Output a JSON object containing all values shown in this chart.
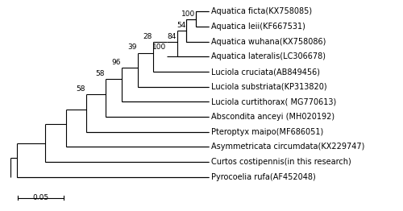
{
  "taxa": [
    "Aquatica ficta(KX758085)",
    "Aquatica leii(KF667531)",
    "Aquatica wuhana(KX758086)",
    "Aquatica lateralis(LC306678)",
    "Luciola cruciata(AB849456)",
    "Luciola substriata(KP313820)",
    "Luciola curtithorax( MG770613)",
    "Abscondita anceyi (MH020192)",
    "Pteroptyx maipo(MF686051)",
    "Asymmetricata circumdata(KX229747)",
    "Curtos costipennis(in this research)",
    "Pyrocoelia rufa(AF452048)"
  ],
  "line_color": "#000000",
  "text_color": "#000000",
  "bg_color": "#ffffff",
  "fontsize": 7.0,
  "bootstrap_fontsize": 6.5,
  "scale_bar_label": "0.05"
}
